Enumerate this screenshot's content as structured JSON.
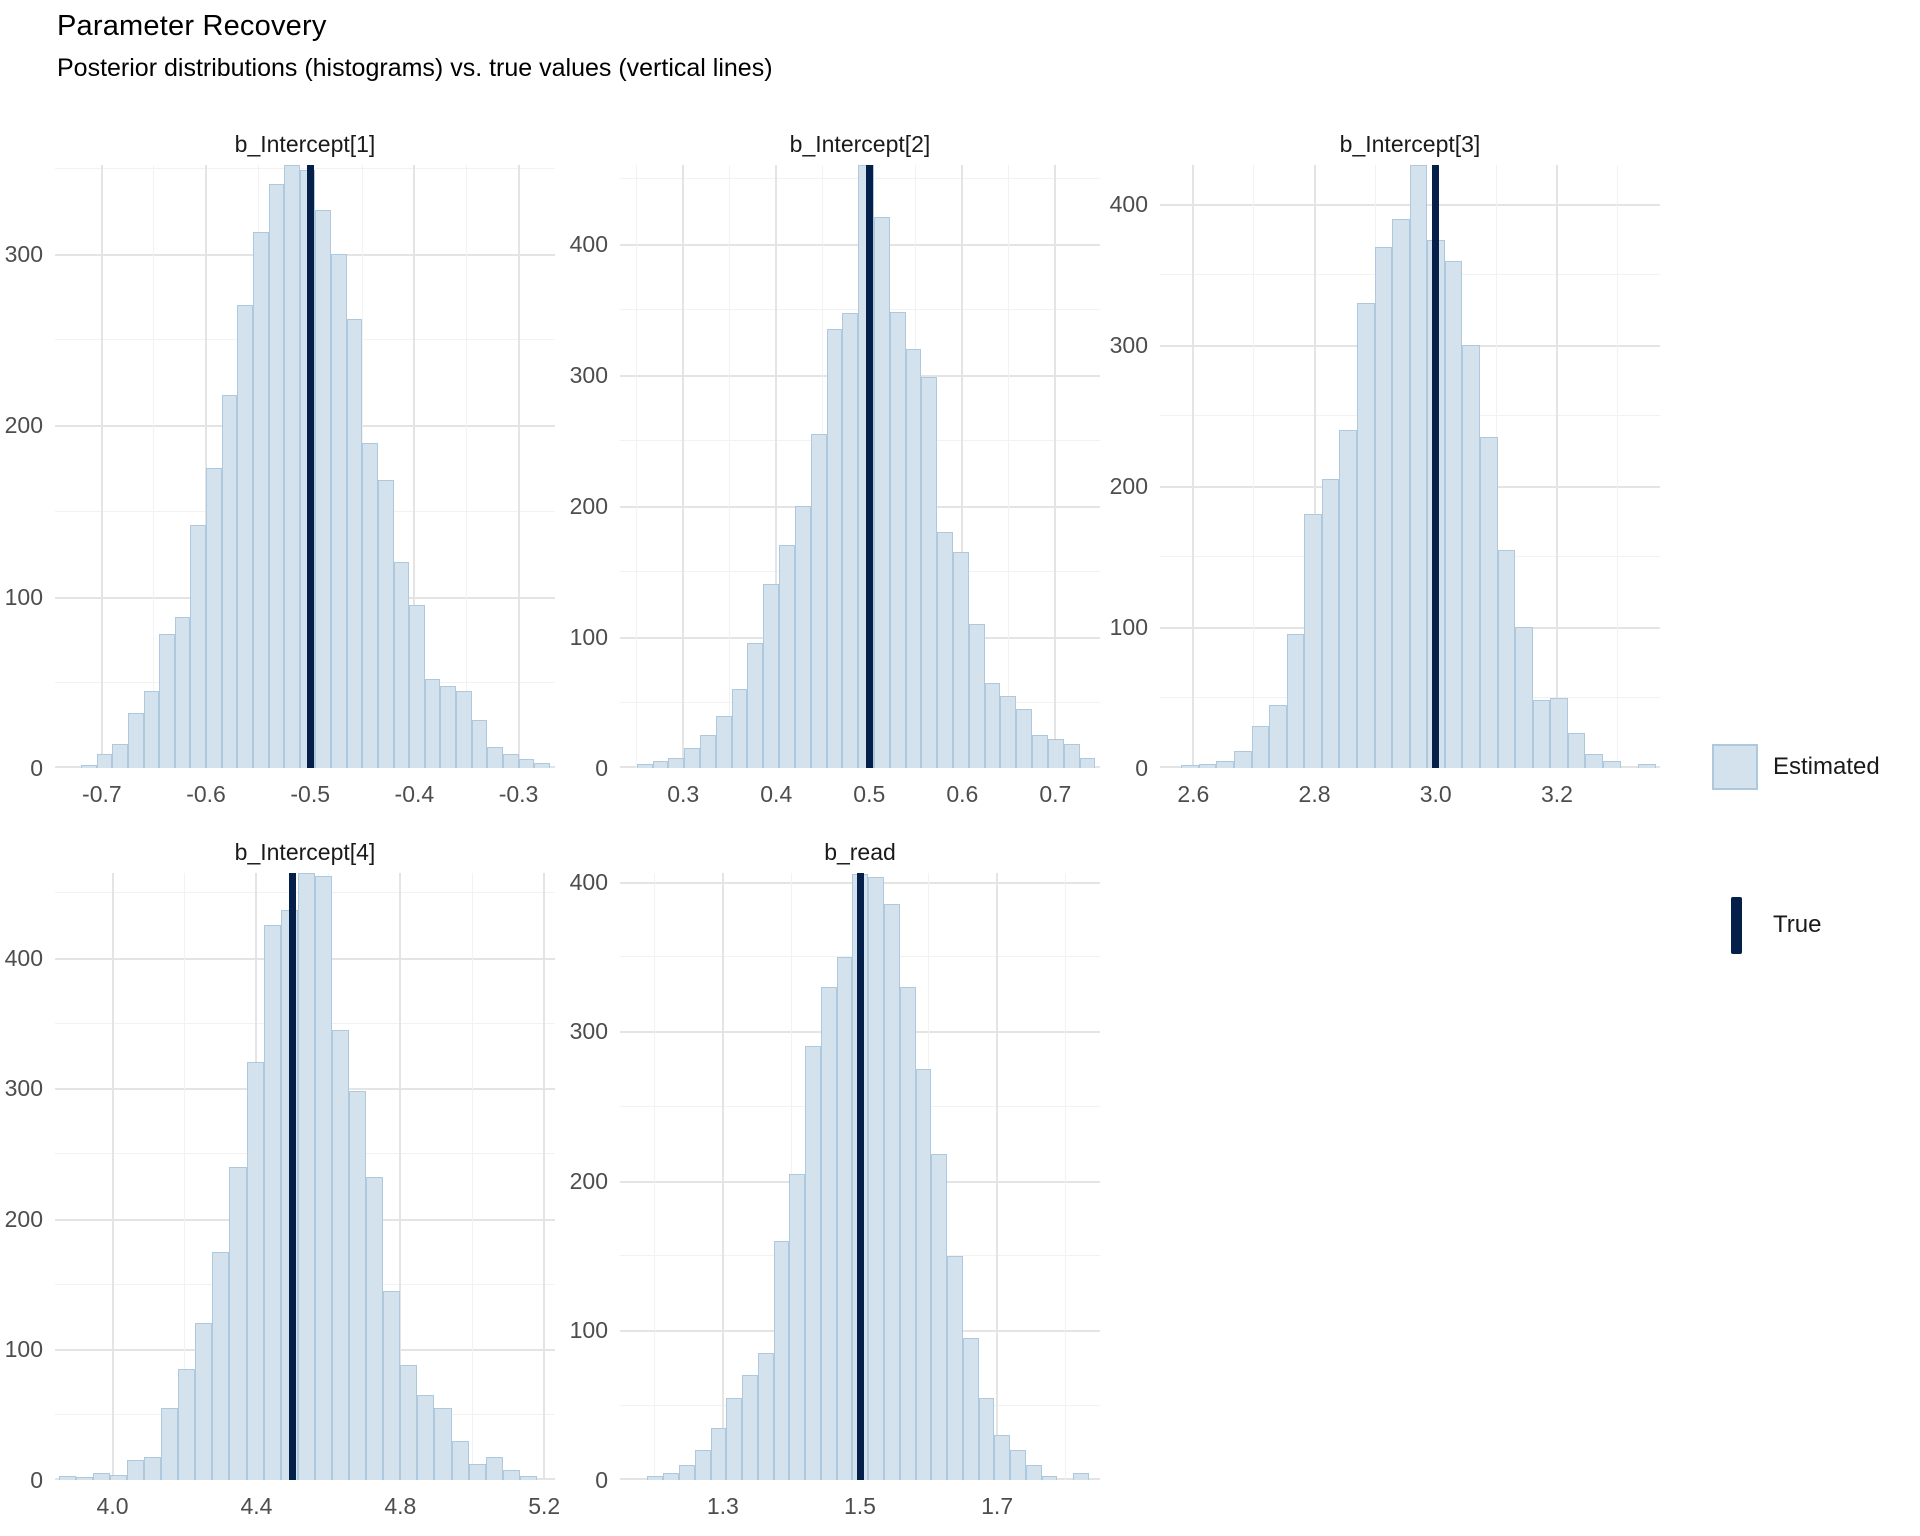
{
  "header": {
    "title": "Parameter Recovery",
    "subtitle": "Posterior distributions (histograms) vs. true values (vertical lines)"
  },
  "legend": {
    "position": "right",
    "items": [
      {
        "label": "Estimated",
        "type": "fill-swatch"
      },
      {
        "label": "True",
        "type": "vertical-line"
      }
    ]
  },
  "colors": {
    "estimated_fill": "#d4e2ee",
    "estimated_border": "#aec9dd",
    "true_line": "#04204a",
    "grid_major": "#e4e4e4",
    "grid_minor": "#f2f2f2",
    "tick_text": "#4d4d4d"
  },
  "chart_data": [
    {
      "type": "bar",
      "subtype": "histogram",
      "title": "b_Intercept[1]",
      "true_value": -0.5,
      "x_range": [
        -0.745,
        -0.265
      ],
      "bin_start": -0.72,
      "bin_width": 0.015,
      "values": [
        2,
        8,
        14,
        32,
        45,
        78,
        88,
        142,
        175,
        218,
        270,
        313,
        341,
        352,
        349,
        326,
        300,
        262,
        190,
        168,
        120,
        95,
        52,
        48,
        45,
        28,
        12,
        8,
        5,
        3
      ],
      "x_tick_values": [
        -0.7,
        -0.6,
        -0.5,
        -0.4,
        -0.3
      ],
      "x_tick_labels": [
        "-0.7",
        "-0.6",
        "-0.5",
        "-0.4",
        "-0.3"
      ],
      "y_ticks": [
        0,
        100,
        200,
        300
      ],
      "y_max": 352,
      "grid": true
    },
    {
      "type": "bar",
      "subtype": "histogram",
      "title": "b_Intercept[2]",
      "true_value": 0.5,
      "x_range": [
        0.232,
        0.748
      ],
      "bin_start": 0.25,
      "bin_width": 0.017,
      "values": [
        3,
        5,
        8,
        15,
        25,
        40,
        60,
        95,
        140,
        170,
        200,
        255,
        335,
        347,
        460,
        420,
        348,
        320,
        298,
        180,
        165,
        110,
        65,
        55,
        45,
        25,
        22,
        18,
        8
      ],
      "x_tick_values": [
        0.3,
        0.4,
        0.5,
        0.6,
        0.7
      ],
      "x_tick_labels": [
        "0.3",
        "0.4",
        "0.5",
        "0.6",
        "0.7"
      ],
      "y_ticks": [
        0,
        100,
        200,
        300,
        400
      ],
      "y_max": 460,
      "grid": true
    },
    {
      "type": "bar",
      "subtype": "histogram",
      "title": "b_Intercept[3]",
      "true_value": 3.0,
      "x_range": [
        2.545,
        3.37
      ],
      "bin_start": 2.58,
      "bin_width": 0.029,
      "values": [
        2,
        3,
        5,
        12,
        30,
        45,
        95,
        180,
        205,
        240,
        330,
        370,
        390,
        428,
        375,
        360,
        300,
        235,
        155,
        100,
        48,
        50,
        25,
        10,
        5,
        0,
        3
      ],
      "x_tick_values": [
        2.6,
        2.8,
        3.0,
        3.2
      ],
      "x_tick_labels": [
        "2.6",
        "2.8",
        "3.0",
        "3.2"
      ],
      "y_ticks": [
        0,
        100,
        200,
        300,
        400
      ],
      "y_max": 428,
      "grid": true
    },
    {
      "type": "bar",
      "subtype": "histogram",
      "title": "b_Intercept[4]",
      "true_value": 4.5,
      "x_range": [
        3.84,
        5.23
      ],
      "bin_start": 3.85,
      "bin_width": 0.0475,
      "values": [
        3,
        2,
        5,
        4,
        15,
        18,
        55,
        85,
        120,
        175,
        240,
        320,
        425,
        437,
        465,
        463,
        345,
        298,
        232,
        145,
        88,
        65,
        55,
        30,
        12,
        18,
        8,
        3
      ],
      "x_tick_values": [
        4.0,
        4.4,
        4.8,
        5.2
      ],
      "x_tick_labels": [
        "4.0",
        "4.4",
        "4.8",
        "5.2"
      ],
      "y_ticks": [
        0,
        100,
        200,
        300,
        400
      ],
      "y_max": 465,
      "grid": true
    },
    {
      "type": "bar",
      "subtype": "histogram",
      "title": "b_read",
      "true_value": 1.5,
      "x_range": [
        1.15,
        1.85
      ],
      "bin_start": 1.19,
      "bin_width": 0.023,
      "values": [
        3,
        5,
        10,
        20,
        35,
        55,
        70,
        85,
        160,
        205,
        290,
        330,
        350,
        405,
        403,
        385,
        330,
        275,
        218,
        150,
        95,
        55,
        30,
        20,
        10,
        3,
        0,
        5
      ],
      "x_tick_values": [
        1.3,
        1.5,
        1.7
      ],
      "x_tick_labels": [
        "1.3",
        "1.5",
        "1.7"
      ],
      "y_ticks": [
        0,
        100,
        200,
        300,
        400
      ],
      "y_max": 406,
      "grid": true
    }
  ]
}
